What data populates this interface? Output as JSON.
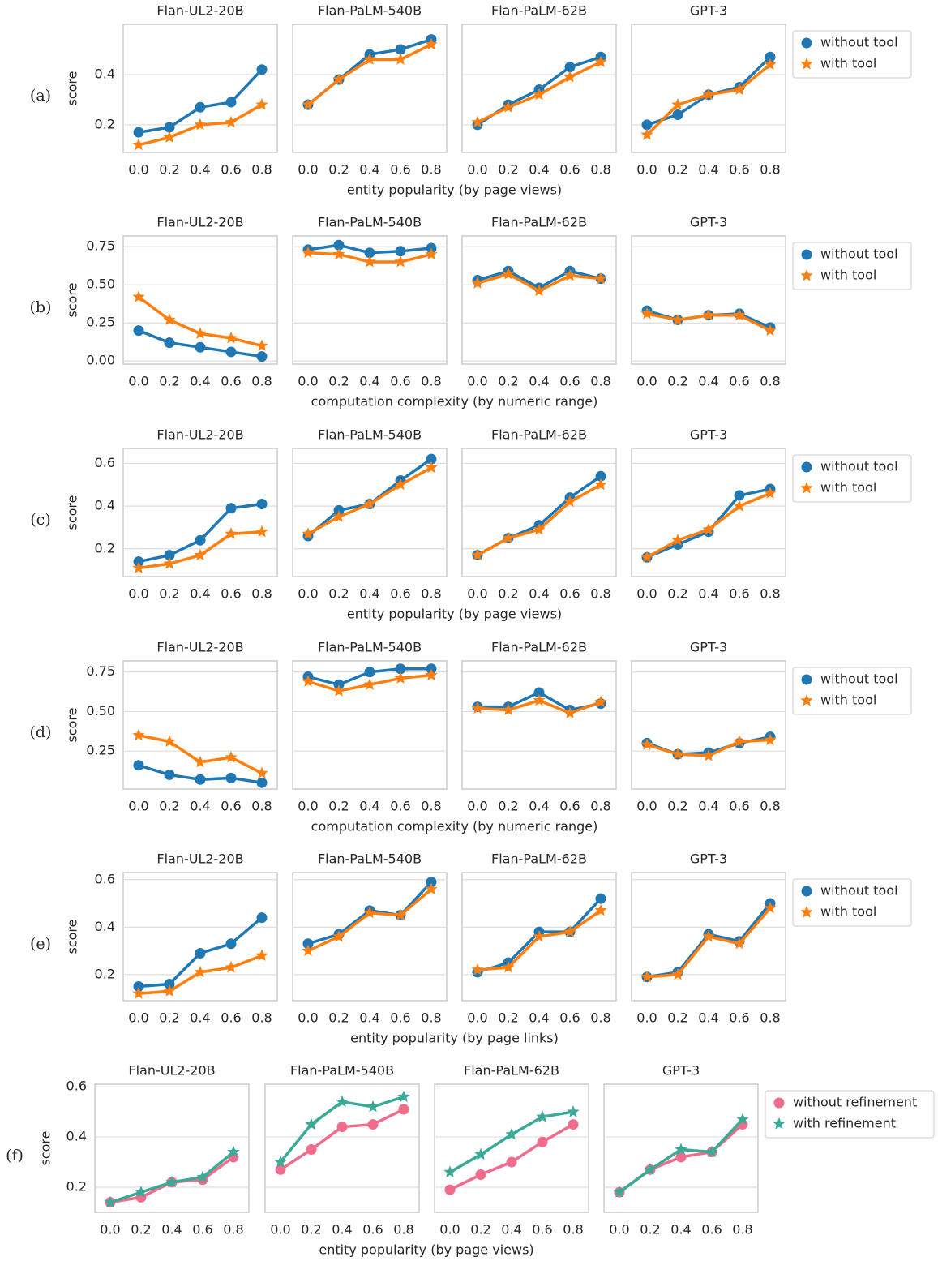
{
  "chart_data": [
    {
      "type": "line",
      "label": "(a)",
      "xlabel": "entity popularity (by page views)",
      "ylabel": "score",
      "categories": [
        "0.0",
        "0.2",
        "0.4",
        "0.6",
        "0.8"
      ],
      "ylim": [
        0.09,
        0.6
      ],
      "yticks": [
        0.2,
        0.4
      ],
      "grid": true,
      "legend": "right",
      "series": [
        {
          "name": "without tool",
          "color": "#1f77b4",
          "marker": "circle"
        },
        {
          "name": "with tool",
          "color": "#ff7f0e",
          "marker": "star"
        }
      ],
      "panels": [
        {
          "title": "Flan-UL2-20B",
          "values": [
            [
              0.17,
              0.19,
              0.27,
              0.29,
              0.42
            ],
            [
              0.12,
              0.15,
              0.2,
              0.21,
              0.28
            ]
          ]
        },
        {
          "title": "Flan-PaLM-540B",
          "values": [
            [
              0.28,
              0.38,
              0.48,
              0.5,
              0.54
            ],
            [
              0.28,
              0.38,
              0.46,
              0.46,
              0.52
            ]
          ]
        },
        {
          "title": "Flan-PaLM-62B",
          "values": [
            [
              0.2,
              0.28,
              0.34,
              0.43,
              0.47
            ],
            [
              0.21,
              0.27,
              0.32,
              0.39,
              0.45
            ]
          ]
        },
        {
          "title": "GPT-3",
          "values": [
            [
              0.2,
              0.24,
              0.32,
              0.35,
              0.47
            ],
            [
              0.16,
              0.28,
              0.32,
              0.34,
              0.44
            ]
          ]
        }
      ]
    },
    {
      "type": "line",
      "label": "(b)",
      "xlabel": "computation complexity (by numeric range)",
      "ylabel": "score",
      "categories": [
        "0.0",
        "0.2",
        "0.4",
        "0.6",
        "0.8"
      ],
      "ylim": [
        -0.02,
        0.82
      ],
      "yticks": [
        {
          "value": 0,
          "label": "0.00"
        },
        {
          "value": 0.25,
          "label": "0.25"
        },
        {
          "value": 0.5,
          "label": "0.50"
        },
        {
          "value": 0.75,
          "label": "0.75"
        }
      ],
      "grid": true,
      "legend": "right",
      "series": [
        {
          "name": "without tool",
          "color": "#1f77b4",
          "marker": "circle"
        },
        {
          "name": "with tool",
          "color": "#ff7f0e",
          "marker": "star"
        }
      ],
      "panels": [
        {
          "title": "Flan-UL2-20B",
          "values": [
            [
              0.2,
              0.12,
              0.09,
              0.06,
              0.03
            ],
            [
              0.42,
              0.27,
              0.18,
              0.15,
              0.1
            ]
          ]
        },
        {
          "title": "Flan-PaLM-540B",
          "values": [
            [
              0.73,
              0.76,
              0.71,
              0.72,
              0.74
            ],
            [
              0.71,
              0.7,
              0.65,
              0.65,
              0.7
            ]
          ]
        },
        {
          "title": "Flan-PaLM-62B",
          "values": [
            [
              0.53,
              0.59,
              0.48,
              0.59,
              0.54
            ],
            [
              0.51,
              0.57,
              0.46,
              0.56,
              0.54
            ]
          ]
        },
        {
          "title": "GPT-3",
          "values": [
            [
              0.33,
              0.27,
              0.3,
              0.31,
              0.22
            ],
            [
              0.31,
              0.27,
              0.3,
              0.3,
              0.2
            ]
          ]
        }
      ]
    },
    {
      "type": "line",
      "label": "(c)",
      "xlabel": "entity popularity (by page views)",
      "ylabel": "score",
      "categories": [
        "0.0",
        "0.2",
        "0.4",
        "0.6",
        "0.8"
      ],
      "ylim": [
        0.07,
        0.67
      ],
      "yticks": [
        0.2,
        0.4,
        0.6
      ],
      "grid": true,
      "legend": "right",
      "series": [
        {
          "name": "without tool",
          "color": "#1f77b4",
          "marker": "circle"
        },
        {
          "name": "with tool",
          "color": "#ff7f0e",
          "marker": "star"
        }
      ],
      "panels": [
        {
          "title": "Flan-UL2-20B",
          "values": [
            [
              0.14,
              0.17,
              0.24,
              0.39,
              0.41
            ],
            [
              0.11,
              0.13,
              0.17,
              0.27,
              0.28
            ]
          ]
        },
        {
          "title": "Flan-PaLM-540B",
          "values": [
            [
              0.26,
              0.38,
              0.41,
              0.52,
              0.62
            ],
            [
              0.27,
              0.35,
              0.41,
              0.5,
              0.58
            ]
          ]
        },
        {
          "title": "Flan-PaLM-62B",
          "values": [
            [
              0.17,
              0.25,
              0.31,
              0.44,
              0.54
            ],
            [
              0.17,
              0.25,
              0.29,
              0.42,
              0.5
            ]
          ]
        },
        {
          "title": "GPT-3",
          "values": [
            [
              0.16,
              0.22,
              0.28,
              0.45,
              0.48
            ],
            [
              0.16,
              0.24,
              0.29,
              0.4,
              0.46
            ]
          ]
        }
      ]
    },
    {
      "type": "line",
      "label": "(d)",
      "xlabel": "computation complexity (by numeric range)",
      "ylabel": "score",
      "categories": [
        "0.0",
        "0.2",
        "0.4",
        "0.6",
        "0.8"
      ],
      "ylim": [
        0.01,
        0.82
      ],
      "yticks": [
        {
          "value": 0.25,
          "label": "0.25"
        },
        {
          "value": 0.5,
          "label": "0.50"
        },
        {
          "value": 0.75,
          "label": "0.75"
        }
      ],
      "grid": true,
      "legend": "right",
      "series": [
        {
          "name": "without tool",
          "color": "#1f77b4",
          "marker": "circle"
        },
        {
          "name": "with tool",
          "color": "#ff7f0e",
          "marker": "star"
        }
      ],
      "panels": [
        {
          "title": "Flan-UL2-20B",
          "values": [
            [
              0.16,
              0.1,
              0.07,
              0.08,
              0.05
            ],
            [
              0.35,
              0.31,
              0.18,
              0.21,
              0.11
            ]
          ]
        },
        {
          "title": "Flan-PaLM-540B",
          "values": [
            [
              0.72,
              0.67,
              0.75,
              0.77,
              0.77
            ],
            [
              0.69,
              0.63,
              0.67,
              0.71,
              0.73
            ]
          ]
        },
        {
          "title": "Flan-PaLM-62B",
          "values": [
            [
              0.53,
              0.53,
              0.62,
              0.51,
              0.55
            ],
            [
              0.52,
              0.51,
              0.57,
              0.49,
              0.56
            ]
          ]
        },
        {
          "title": "GPT-3",
          "values": [
            [
              0.3,
              0.23,
              0.24,
              0.3,
              0.34
            ],
            [
              0.29,
              0.23,
              0.22,
              0.31,
              0.32
            ]
          ]
        }
      ]
    },
    {
      "type": "line",
      "label": "(e)",
      "xlabel": "entity popularity (by page links)",
      "ylabel": "score",
      "categories": [
        "0.0",
        "0.2",
        "0.4",
        "0.6",
        "0.8"
      ],
      "ylim": [
        0.09,
        0.63
      ],
      "yticks": [
        0.2,
        0.4,
        0.6
      ],
      "grid": true,
      "legend": "right",
      "series": [
        {
          "name": "without tool",
          "color": "#1f77b4",
          "marker": "circle"
        },
        {
          "name": "with tool",
          "color": "#ff7f0e",
          "marker": "star"
        }
      ],
      "panels": [
        {
          "title": "Flan-UL2-20B",
          "values": [
            [
              0.15,
              0.16,
              0.29,
              0.33,
              0.44
            ],
            [
              0.12,
              0.13,
              0.21,
              0.23,
              0.28
            ]
          ]
        },
        {
          "title": "Flan-PaLM-540B",
          "values": [
            [
              0.33,
              0.37,
              0.47,
              0.45,
              0.59
            ],
            [
              0.3,
              0.36,
              0.46,
              0.45,
              0.56
            ]
          ]
        },
        {
          "title": "Flan-PaLM-62B",
          "values": [
            [
              0.21,
              0.25,
              0.38,
              0.38,
              0.52
            ],
            [
              0.22,
              0.23,
              0.36,
              0.38,
              0.47
            ]
          ]
        },
        {
          "title": "GPT-3",
          "values": [
            [
              0.19,
              0.21,
              0.37,
              0.34,
              0.5
            ],
            [
              0.19,
              0.2,
              0.36,
              0.33,
              0.48
            ]
          ]
        }
      ]
    },
    {
      "type": "line",
      "label": "(f)",
      "xlabel": "entity popularity (by page views)",
      "ylabel": "score",
      "categories": [
        "0.0",
        "0.2",
        "0.4",
        "0.6",
        "0.8"
      ],
      "ylim": [
        0.1,
        0.61
      ],
      "yticks": [
        0.2,
        0.4,
        0.6
      ],
      "grid": true,
      "legend": "right",
      "series": [
        {
          "name": "without refinement",
          "color": "#f06c8c",
          "marker": "circle"
        },
        {
          "name": "with refinement",
          "color": "#3aaa96",
          "marker": "star"
        }
      ],
      "panels": [
        {
          "title": "Flan-UL2-20B",
          "values": [
            [
              0.14,
              0.16,
              0.22,
              0.23,
              0.32
            ],
            [
              0.14,
              0.18,
              0.22,
              0.24,
              0.34
            ]
          ]
        },
        {
          "title": "Flan-PaLM-540B",
          "values": [
            [
              0.27,
              0.35,
              0.44,
              0.45,
              0.51
            ],
            [
              0.3,
              0.45,
              0.54,
              0.52,
              0.56
            ]
          ]
        },
        {
          "title": "Flan-PaLM-62B",
          "values": [
            [
              0.19,
              0.25,
              0.3,
              0.38,
              0.45
            ],
            [
              0.26,
              0.33,
              0.41,
              0.48,
              0.5
            ]
          ]
        },
        {
          "title": "GPT-3",
          "values": [
            [
              0.18,
              0.27,
              0.32,
              0.34,
              0.45
            ],
            [
              0.18,
              0.27,
              0.35,
              0.34,
              0.47
            ]
          ]
        }
      ]
    }
  ]
}
